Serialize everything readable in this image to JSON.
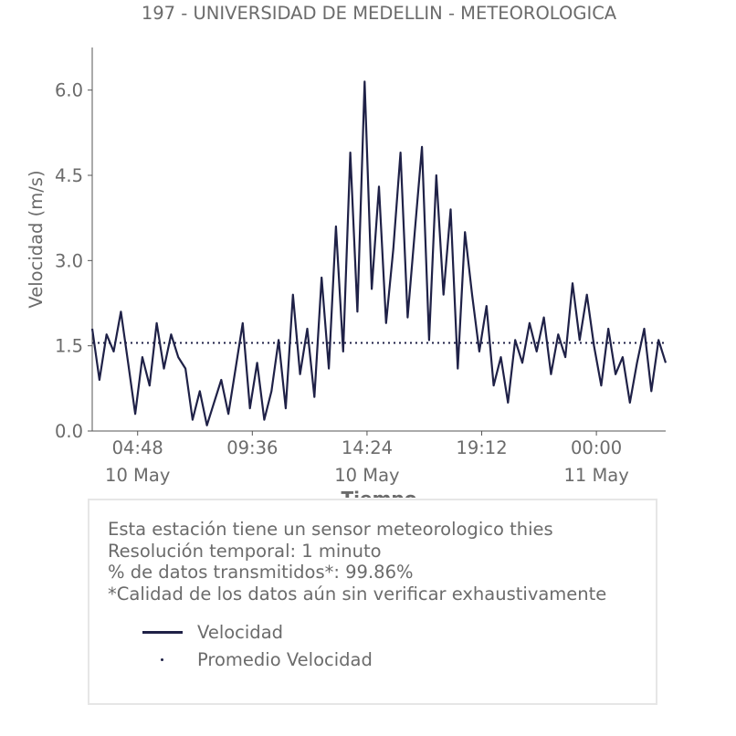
{
  "chart_data": {
    "type": "line",
    "title": "197 - UNIVERSIDAD DE MEDELLIN - METEOROLOGICA",
    "xlabel": "Tiempo",
    "ylabel": "Velocidad (m/s)",
    "ylim": [
      0,
      6.75
    ],
    "y_ticks": [
      "0.0",
      "1.5",
      "3.0",
      "4.5",
      "6.0"
    ],
    "x_ticks": [
      {
        "time": "04:48",
        "date": "10 May"
      },
      {
        "time": "09:36",
        "date": ""
      },
      {
        "time": "14:24",
        "date": "10 May"
      },
      {
        "time": "19:12",
        "date": ""
      },
      {
        "time": "00:00",
        "date": "11 May"
      }
    ],
    "xlim_hours": [
      2.9,
      26.9
    ],
    "series": [
      {
        "name": "Velocidad",
        "style": "solid",
        "x": [
          2.9,
          3.2,
          3.5,
          3.8,
          4.1,
          4.4,
          4.7,
          5.0,
          5.3,
          5.6,
          5.9,
          6.2,
          6.5,
          6.8,
          7.1,
          7.4,
          7.7,
          8.0,
          8.3,
          8.6,
          8.9,
          9.2,
          9.5,
          9.8,
          10.1,
          10.4,
          10.7,
          11.0,
          11.3,
          11.6,
          11.9,
          12.2,
          12.5,
          12.8,
          13.1,
          13.4,
          13.7,
          14.0,
          14.3,
          14.6,
          14.9,
          15.2,
          15.5,
          15.8,
          16.1,
          16.4,
          16.7,
          17.0,
          17.3,
          17.6,
          17.9,
          18.2,
          18.5,
          18.8,
          19.1,
          19.4,
          19.7,
          20.0,
          20.3,
          20.6,
          20.9,
          21.2,
          21.5,
          21.8,
          22.1,
          22.4,
          22.7,
          23.0,
          23.3,
          23.6,
          23.9,
          24.2,
          24.5,
          24.8,
          25.1,
          25.4,
          25.7,
          26.0,
          26.3,
          26.6,
          26.9
        ],
        "values": [
          1.8,
          0.9,
          1.7,
          1.4,
          2.1,
          1.2,
          0.3,
          1.3,
          0.8,
          1.9,
          1.1,
          1.7,
          1.3,
          1.1,
          0.2,
          0.7,
          0.1,
          0.5,
          0.9,
          0.3,
          1.1,
          1.9,
          0.4,
          1.2,
          0.2,
          0.7,
          1.6,
          0.4,
          2.4,
          1.0,
          1.8,
          0.6,
          2.7,
          1.1,
          3.6,
          1.4,
          4.9,
          2.1,
          6.15,
          2.5,
          4.3,
          1.9,
          3.2,
          4.9,
          2.0,
          3.5,
          5.0,
          1.6,
          4.5,
          2.4,
          3.9,
          1.1,
          3.5,
          2.4,
          1.4,
          2.2,
          0.8,
          1.3,
          0.5,
          1.6,
          1.2,
          1.9,
          1.4,
          2.0,
          1.0,
          1.7,
          1.3,
          2.6,
          1.6,
          2.4,
          1.5,
          0.8,
          1.8,
          1.0,
          1.3,
          0.5,
          1.2,
          1.8,
          0.7,
          1.6,
          1.2
        ]
      },
      {
        "name": "Promedio Velocidad",
        "style": "dotted",
        "x": [
          2.9,
          26.9
        ],
        "values": [
          1.55,
          1.55
        ]
      }
    ],
    "legend_placement": "bottom-box",
    "grid": false,
    "color": "#1f2147"
  },
  "info": {
    "line1": "Esta estación tiene un sensor meteorologico thies",
    "line2": "Resolución temporal: 1 minuto",
    "line3": "% de datos transmitidos*: 99.86%",
    "line4": "*Calidad de los datos aún sin verificar exhaustivamente"
  },
  "legend": {
    "series1": "Velocidad",
    "series2": "Promedio Velocidad"
  }
}
